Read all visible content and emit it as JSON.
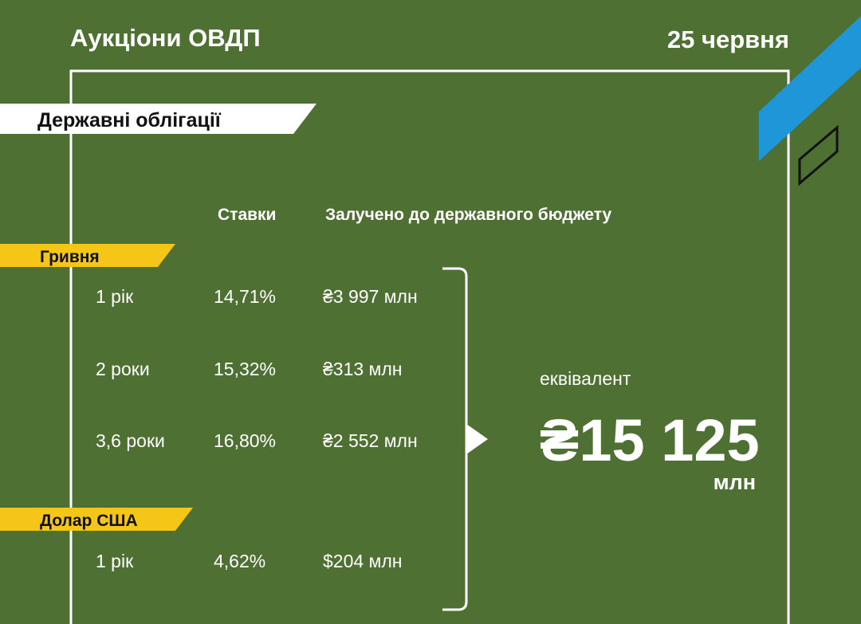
{
  "header": {
    "title": "Аукціони ОВДП",
    "date": "25 червня"
  },
  "section_label": "Державні облігації",
  "columns": [
    "Ставки",
    "Залучено до державного бюджету"
  ],
  "groups": [
    {
      "label": "Гривня",
      "rows": [
        [
          "1 рік",
          "14,71%",
          "₴3 997 млн"
        ],
        [
          "2 роки",
          "15,32%",
          "₴313 млн"
        ],
        [
          "3,6 роки",
          "16,80%",
          "₴2 552 млн"
        ]
      ]
    },
    {
      "label": "Долар США",
      "rows": [
        [
          "1 рік",
          "4,62%",
          "$204 млн"
        ]
      ]
    }
  ],
  "total": {
    "label": "еквівалент",
    "value": "₴15 125",
    "unit": "млн"
  }
}
